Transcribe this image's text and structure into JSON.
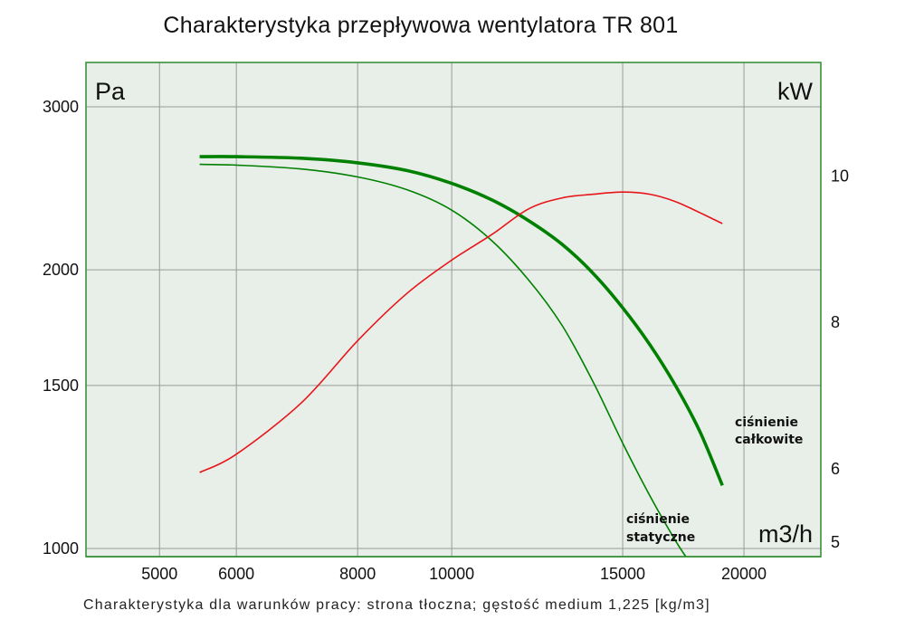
{
  "chart_data": {
    "type": "line",
    "title": "Charakterystyka przepływowa wentylatora TR 801",
    "subtitle": "Charakterystyka dla warunków pracy: strona tłoczna; gęstość medium 1,225 [kg/m3]",
    "x_axis": {
      "label": "m3/h",
      "scale": "log",
      "lim": [
        4200,
        24000
      ],
      "ticks": [
        5000,
        6000,
        8000,
        10000,
        15000,
        20000
      ],
      "tick_labels": [
        "5000",
        "6000",
        "8000",
        "10000",
        "15000",
        "20000"
      ]
    },
    "y_axis_left": {
      "label": "Pa",
      "scale": "log",
      "lim": [
        980,
        3350
      ],
      "ticks": [
        1000,
        1500,
        2000,
        3000
      ],
      "tick_labels": [
        "1000",
        "1500",
        "2000",
        "3000"
      ]
    },
    "y_axis_right": {
      "label": "kW",
      "lim": [
        4.8,
        11.55
      ],
      "ticks": [
        5,
        6,
        8,
        10
      ],
      "tick_labels": [
        "5",
        "6",
        "8",
        "10"
      ]
    },
    "grid": true,
    "series": [
      {
        "name": "ciśnienie całkowite",
        "axis": "left",
        "color": "#008000",
        "style": "thick",
        "x": [
          5500,
          6000,
          7000,
          8000,
          9000,
          10000,
          11000,
          12000,
          13000,
          14000,
          15000,
          16000,
          17000,
          18000,
          19000
        ],
        "y": [
          2650,
          2650,
          2640,
          2610,
          2560,
          2480,
          2380,
          2260,
          2130,
          1980,
          1820,
          1660,
          1500,
          1340,
          1170
        ]
      },
      {
        "name": "ciśnienie statyczne",
        "axis": "left",
        "color": "#008000",
        "style": "thin",
        "x": [
          5500,
          6000,
          7000,
          8000,
          9000,
          10000,
          11000,
          12000,
          13000,
          14000,
          15000,
          16000,
          17000,
          17600
        ],
        "y": [
          2600,
          2595,
          2570,
          2520,
          2440,
          2320,
          2150,
          1950,
          1740,
          1510,
          1300,
          1140,
          1020,
          965
        ]
      },
      {
        "name": "kW",
        "axis": "right",
        "color": "#e8141a",
        "style": "thin",
        "x": [
          5500,
          6000,
          7000,
          8000,
          9000,
          10000,
          11000,
          12000,
          13000,
          14000,
          15000,
          16000,
          17000,
          18000,
          19000
        ],
        "y": [
          5.95,
          6.2,
          6.9,
          7.75,
          8.4,
          8.85,
          9.2,
          9.55,
          9.7,
          9.75,
          9.78,
          9.75,
          9.65,
          9.5,
          9.35
        ]
      }
    ],
    "annotations": [
      {
        "series": "ciśnienie całkowite",
        "lines": [
          "ciśnienie",
          "całkowite"
        ]
      },
      {
        "series": "ciśnienie statyczne",
        "lines": [
          "ciśnienie",
          "statyczne"
        ]
      }
    ]
  }
}
